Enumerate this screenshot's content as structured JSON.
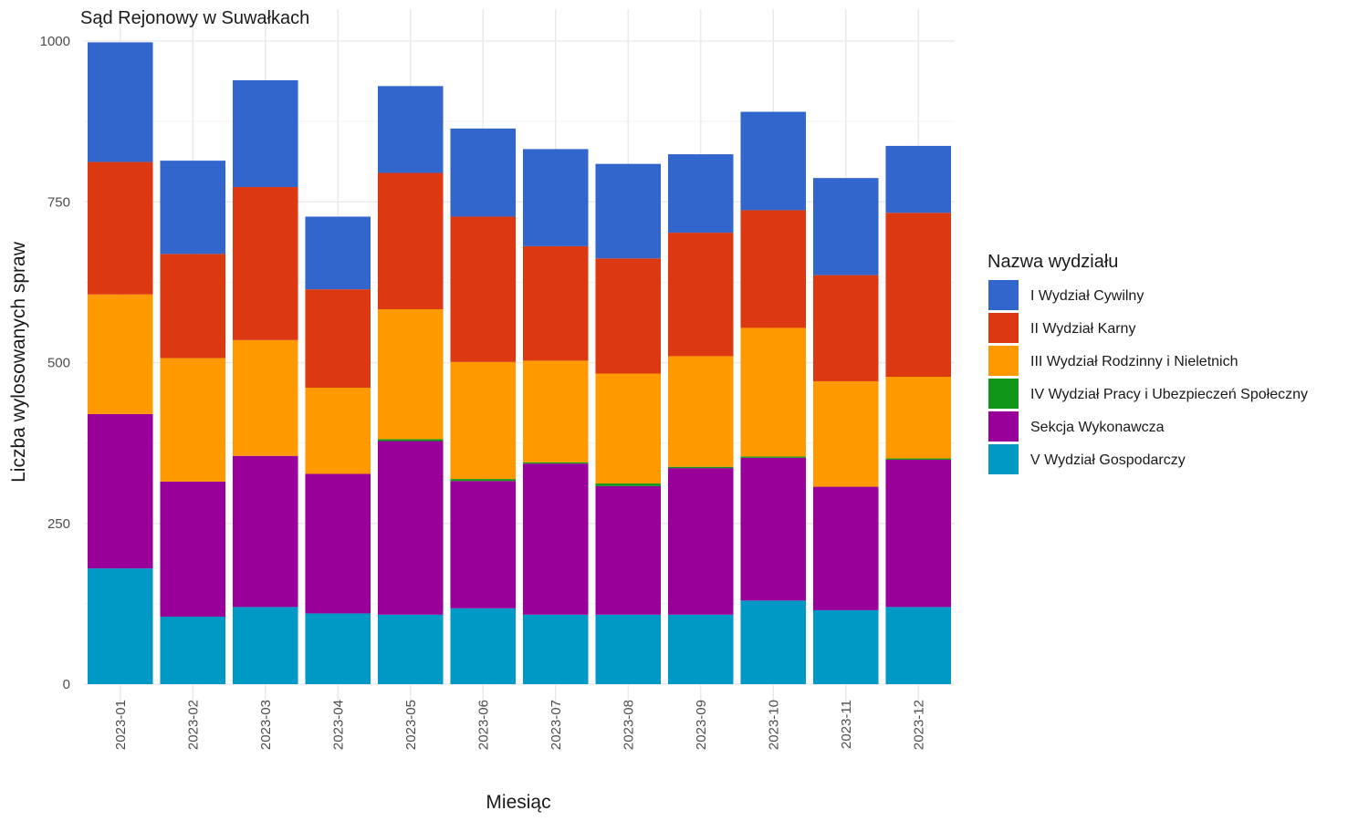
{
  "chart_data": {
    "type": "bar",
    "stacked": true,
    "title": "Sąd Rejonowy w Suwałkach",
    "xlabel": "Miesiąc",
    "ylabel": "Liczba wylosowanych spraw",
    "ylim": [
      0,
      1000
    ],
    "yticks": [
      0,
      250,
      500,
      750,
      1000
    ],
    "grid": true,
    "legend": {
      "title": "Nazwa wydziału",
      "position": "right"
    },
    "categories": [
      "2023-01",
      "2023-02",
      "2023-03",
      "2023-04",
      "2023-05",
      "2023-06",
      "2023-07",
      "2023-08",
      "2023-09",
      "2023-10",
      "2023-11",
      "2023-12"
    ],
    "series": [
      {
        "name": "V Wydział Gospodarczy",
        "color": "#0099C6",
        "values": [
          180,
          105,
          120,
          110,
          108,
          118,
          108,
          108,
          108,
          130,
          115,
          120
        ]
      },
      {
        "name": "Sekcja Wykonawcza",
        "color": "#990099",
        "values": [
          240,
          210,
          235,
          217,
          270,
          198,
          235,
          200,
          228,
          222,
          192,
          229
        ]
      },
      {
        "name": "IV Wydział Pracy i Ubezpieczeń Społeczny",
        "color": "#109618",
        "values": [
          0,
          0,
          0,
          0,
          3,
          3,
          2,
          4,
          2,
          2,
          0,
          2
        ]
      },
      {
        "name": "III Wydział Rodzinny i Nieletnich",
        "color": "#FF9900",
        "values": [
          186,
          192,
          180,
          134,
          202,
          182,
          158,
          171,
          172,
          200,
          164,
          127
        ]
      },
      {
        "name": "II Wydział Karny",
        "color": "#DC3912",
        "values": [
          206,
          162,
          238,
          153,
          212,
          226,
          178,
          179,
          192,
          183,
          165,
          255
        ]
      },
      {
        "name": "I Wydział Cywilny",
        "color": "#3366CC",
        "values": [
          186,
          145,
          166,
          113,
          135,
          137,
          151,
          147,
          122,
          153,
          151,
          104
        ]
      }
    ],
    "legend_order": [
      "I Wydział Cywilny",
      "II Wydział Karny",
      "III Wydział Rodzinny i Nieletnich",
      "IV Wydział Pracy i Ubezpieczeń Społeczny",
      "Sekcja Wykonawcza",
      "V Wydział Gospodarczy"
    ]
  }
}
